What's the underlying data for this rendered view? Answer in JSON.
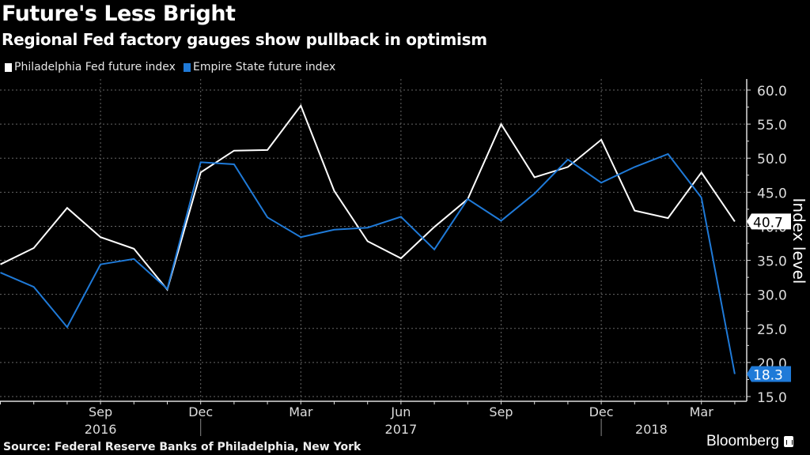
{
  "header": {
    "title": "Future's Less Bright",
    "subtitle": "Regional Fed factory gauges show pullback in optimism"
  },
  "footer": {
    "source": "Source: Federal Reserve Banks of Philadelphia, New York",
    "brand": "Bloomberg"
  },
  "chart_data": {
    "type": "line",
    "title": "Future's Less Bright",
    "subtitle": "Regional Fed factory gauges show pullback in optimism",
    "xlabel": "",
    "ylabel": "Index level",
    "ylim": [
      15,
      60
    ],
    "yticks": [
      "15.0",
      "20.0",
      "25.0",
      "30.0",
      "35.0",
      "40.0",
      "45.0",
      "50.0",
      "55.0",
      "60.0"
    ],
    "ytick_values": [
      15,
      20,
      25,
      30,
      35,
      40,
      45,
      50,
      55,
      60
    ],
    "grid": true,
    "legend": "top-left",
    "x": [
      "2016-06",
      "2016-07",
      "2016-08",
      "2016-09",
      "2016-10",
      "2016-11",
      "2016-12",
      "2017-01",
      "2017-02",
      "2017-03",
      "2017-04",
      "2017-05",
      "2017-06",
      "2017-07",
      "2017-08",
      "2017-09",
      "2017-10",
      "2017-11",
      "2017-12",
      "2018-01",
      "2018-02",
      "2018-03",
      "2018-04"
    ],
    "xtick_labels": [
      {
        "index": 3,
        "label": "Sep"
      },
      {
        "index": 6,
        "label": "Dec"
      },
      {
        "index": 9,
        "label": "Mar"
      },
      {
        "index": 12,
        "label": "Jun"
      },
      {
        "index": 15,
        "label": "Sep"
      },
      {
        "index": 18,
        "label": "Dec"
      },
      {
        "index": 21,
        "label": "Mar"
      }
    ],
    "year_labels": [
      {
        "index": 3,
        "label": "2016"
      },
      {
        "index": 12,
        "label": "2017"
      },
      {
        "index": 19.5,
        "label": "2018"
      }
    ],
    "year_separators": [
      6.0,
      18.0
    ],
    "series": [
      {
        "name": "Philadelphia Fed future index",
        "color": "#ffffff",
        "values": [
          34.4,
          36.8,
          42.7,
          38.4,
          36.7,
          30.7,
          47.9,
          51.1,
          51.2,
          57.7,
          45.2,
          37.8,
          35.3,
          39.9,
          44.0,
          55.0,
          47.2,
          48.7,
          52.7,
          42.3,
          41.2,
          47.9,
          40.7
        ],
        "last_label": "40.7"
      },
      {
        "name": "Empire State future index",
        "color": "#1f7ad8",
        "values": [
          33.2,
          31.1,
          25.2,
          34.4,
          35.2,
          30.8,
          49.4,
          49.1,
          41.3,
          38.4,
          39.5,
          39.8,
          41.4,
          36.6,
          44.0,
          40.8,
          44.8,
          49.8,
          46.4,
          48.7,
          50.6,
          44.2,
          18.3
        ],
        "last_label": "18.3"
      }
    ]
  }
}
